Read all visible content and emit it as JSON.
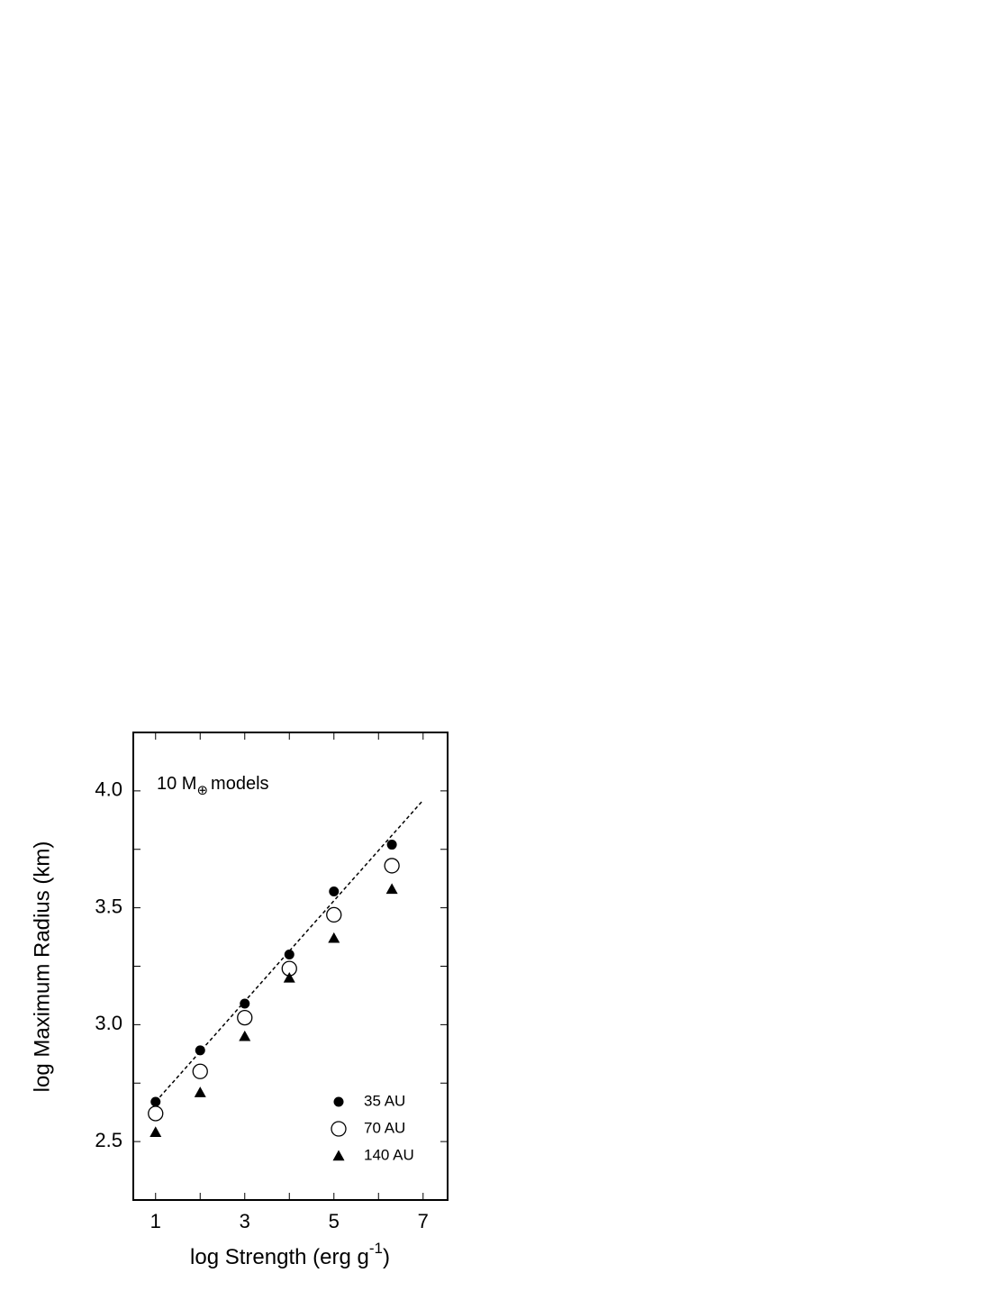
{
  "chart_data": {
    "type": "scatter",
    "xlabel": {
      "text": "log Strength (erg g",
      "superscript": "-1",
      "suffix": ")"
    },
    "ylabel": "log Maximum Radius (km)",
    "annotation": {
      "text": "10 M",
      "subscript": "⊕",
      "suffix": "models"
    },
    "xlim": [
      0.5,
      7.55
    ],
    "ylim": [
      2.25,
      4.25
    ],
    "xticks": [
      1,
      3,
      5,
      7
    ],
    "xminor": [
      2,
      4,
      6
    ],
    "yticks": [
      {
        "value": 2.5,
        "label": "2.5"
      },
      {
        "value": 3,
        "label": "3.0"
      },
      {
        "value": 3.5,
        "label": "3.5"
      },
      {
        "value": 4,
        "label": "4.0"
      }
    ],
    "yminor": [
      2.75,
      3.25,
      3.75
    ],
    "x": [
      1,
      2,
      3,
      4,
      5,
      6.3
    ],
    "series": [
      {
        "name": "35 AU",
        "color": "#000000",
        "marker": "filled-circle",
        "values": [
          2.67,
          2.89,
          3.09,
          3.3,
          3.57,
          3.77
        ]
      },
      {
        "name": "70 AU",
        "color": "#000000",
        "marker": "open-circle",
        "values": [
          2.62,
          2.8,
          3.03,
          3.24,
          3.47,
          3.68
        ]
      },
      {
        "name": "140 AU",
        "color": "#000000",
        "marker": "triangle",
        "values": [
          2.54,
          2.71,
          2.95,
          3.2,
          3.37,
          3.58
        ]
      }
    ],
    "fit_line": {
      "x": [
        1,
        7
      ],
      "y": [
        2.67,
        3.96
      ]
    },
    "legend": "lower right"
  }
}
